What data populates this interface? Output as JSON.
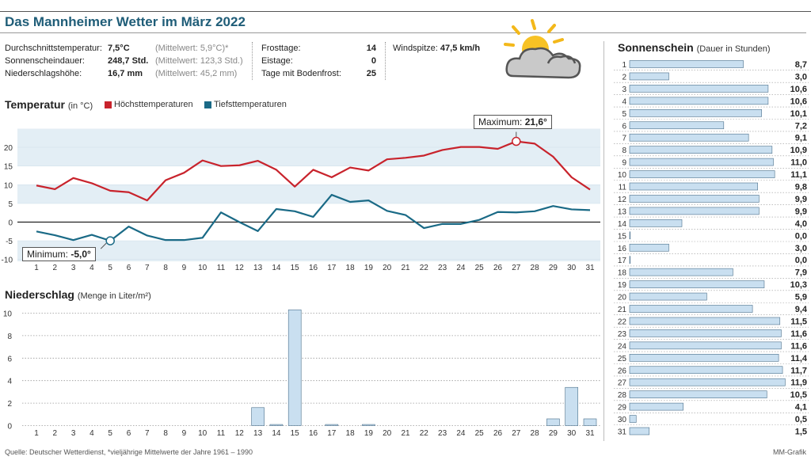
{
  "header": {
    "title": "Das Mannheimer Wetter im März 2022"
  },
  "stats": {
    "left": [
      {
        "label": "Durchschnittstemperatur:",
        "value": "7,5°C",
        "mean": "(Mittelwert: 5,9°C)*"
      },
      {
        "label": "Sonnenscheindauer:",
        "value": "248,7 Std.",
        "mean": "(Mittelwert: 123,3 Std.)"
      },
      {
        "label": "Niederschlagshöhe:",
        "value": "16,7 mm",
        "mean": "(Mittelwert: 45,2 mm)"
      }
    ],
    "middle": [
      {
        "label": "Frosttage:",
        "value": "14"
      },
      {
        "label": "Eistage:",
        "value": "0"
      },
      {
        "label": "Tage mit Bodenfrost:",
        "value": "25"
      }
    ],
    "wind": {
      "label": "Windspitze:",
      "value": "47,5 km/h"
    }
  },
  "weather_icon": "sun-behind-cloud-icon",
  "temperature": {
    "title": "Temperatur",
    "unit": "(in °C)",
    "legend_high": "Höchsttemperaturen",
    "legend_low": "Tiefsttemperaturen",
    "max_label": "Maximum:",
    "max_value": "21,6°",
    "min_label": "Minimum:",
    "min_value": "-5,0°"
  },
  "precipitation": {
    "title": "Niederschlag",
    "unit": "(Menge in Liter/m²)"
  },
  "sunshine": {
    "title": "Sonnenschein",
    "unit": "(Dauer in Stunden)"
  },
  "footer": {
    "source": "Quelle: Deutscher Wetterdienst, *vieljährige Mittelwerte der Jahre 1961 – 1990",
    "credit": "MM-Grafik"
  },
  "colors": {
    "title": "#1f5d78",
    "high": "#c8232c",
    "low": "#1a6a86",
    "band": "#e3eef5",
    "bar": "#c9dff0",
    "bar_stroke": "#4a6f8a"
  },
  "chart_data": [
    {
      "type": "line",
      "title": "Temperatur",
      "x": [
        1,
        2,
        3,
        4,
        5,
        6,
        7,
        8,
        9,
        10,
        11,
        12,
        13,
        14,
        15,
        16,
        17,
        18,
        19,
        20,
        21,
        22,
        23,
        24,
        25,
        26,
        27,
        28,
        29,
        30,
        31
      ],
      "series": [
        {
          "name": "Höchsttemperaturen",
          "values": [
            9.8,
            8.8,
            11.8,
            10.4,
            8.4,
            8.0,
            5.8,
            11.2,
            13.2,
            16.5,
            15.0,
            15.2,
            16.4,
            14.0,
            9.5,
            14.0,
            12.0,
            14.6,
            13.8,
            16.8,
            17.2,
            17.8,
            19.3,
            20.1,
            20.1,
            19.6,
            21.6,
            21.0,
            17.5,
            12.0,
            8.7
          ]
        },
        {
          "name": "Tiefsttemperaturen",
          "values": [
            -2.5,
            -3.5,
            -4.8,
            -3.4,
            -5.0,
            -1.2,
            -3.6,
            -4.8,
            -4.8,
            -4.2,
            2.6,
            0.0,
            -2.4,
            3.5,
            2.9,
            1.4,
            7.3,
            5.4,
            5.8,
            3.0,
            1.9,
            -1.6,
            -0.5,
            -0.5,
            0.6,
            2.7,
            2.6,
            2.9,
            4.3,
            3.4,
            3.2
          ]
        }
      ],
      "yticks": [
        -10,
        -5,
        0,
        5,
        10,
        15,
        20
      ],
      "ylim": [
        -10.5,
        25
      ]
    },
    {
      "type": "bar",
      "title": "Niederschlag",
      "categories": [
        1,
        2,
        3,
        4,
        5,
        6,
        7,
        8,
        9,
        10,
        11,
        12,
        13,
        14,
        15,
        16,
        17,
        18,
        19,
        20,
        21,
        22,
        23,
        24,
        25,
        26,
        27,
        28,
        29,
        30,
        31
      ],
      "values": [
        0,
        0,
        0,
        0,
        0,
        0,
        0,
        0,
        0,
        0,
        0,
        0,
        1.6,
        0.1,
        10.3,
        0,
        0.1,
        0,
        0.1,
        0,
        0,
        0,
        0,
        0,
        0,
        0,
        0,
        0,
        0.6,
        3.4,
        0.6
      ],
      "yticks": [
        0,
        2,
        4,
        6,
        8,
        10
      ],
      "ylim": [
        0,
        10.5
      ]
    },
    {
      "type": "bar",
      "title": "Sonnenschein",
      "categories": [
        1,
        2,
        3,
        4,
        5,
        6,
        7,
        8,
        9,
        10,
        11,
        12,
        13,
        14,
        15,
        16,
        17,
        18,
        19,
        20,
        21,
        22,
        23,
        24,
        25,
        26,
        27,
        28,
        29,
        30,
        31
      ],
      "values": [
        8.7,
        3.0,
        10.6,
        10.6,
        10.1,
        7.2,
        9.1,
        10.9,
        11.0,
        11.1,
        9.8,
        9.9,
        9.9,
        4.0,
        0.0,
        3.0,
        0.0,
        7.9,
        10.3,
        5.9,
        9.4,
        11.5,
        11.6,
        11.6,
        11.4,
        11.7,
        11.9,
        10.5,
        4.1,
        0.5,
        1.5
      ],
      "labels": [
        "8,7",
        "3,0",
        "10,6",
        "10,6",
        "10,1",
        "7,2",
        "9,1",
        "10,9",
        "11,0",
        "11,1",
        "9,8",
        "9,9",
        "9,9",
        "4,0",
        "0,0",
        "3,0",
        "0,0",
        "7,9",
        "10,3",
        "5,9",
        "9,4",
        "11,5",
        "11,6",
        "11,6",
        "11,4",
        "11,7",
        "11,9",
        "10,5",
        "4,1",
        "0,5",
        "1,5"
      ],
      "xlim": [
        0,
        12
      ]
    }
  ]
}
